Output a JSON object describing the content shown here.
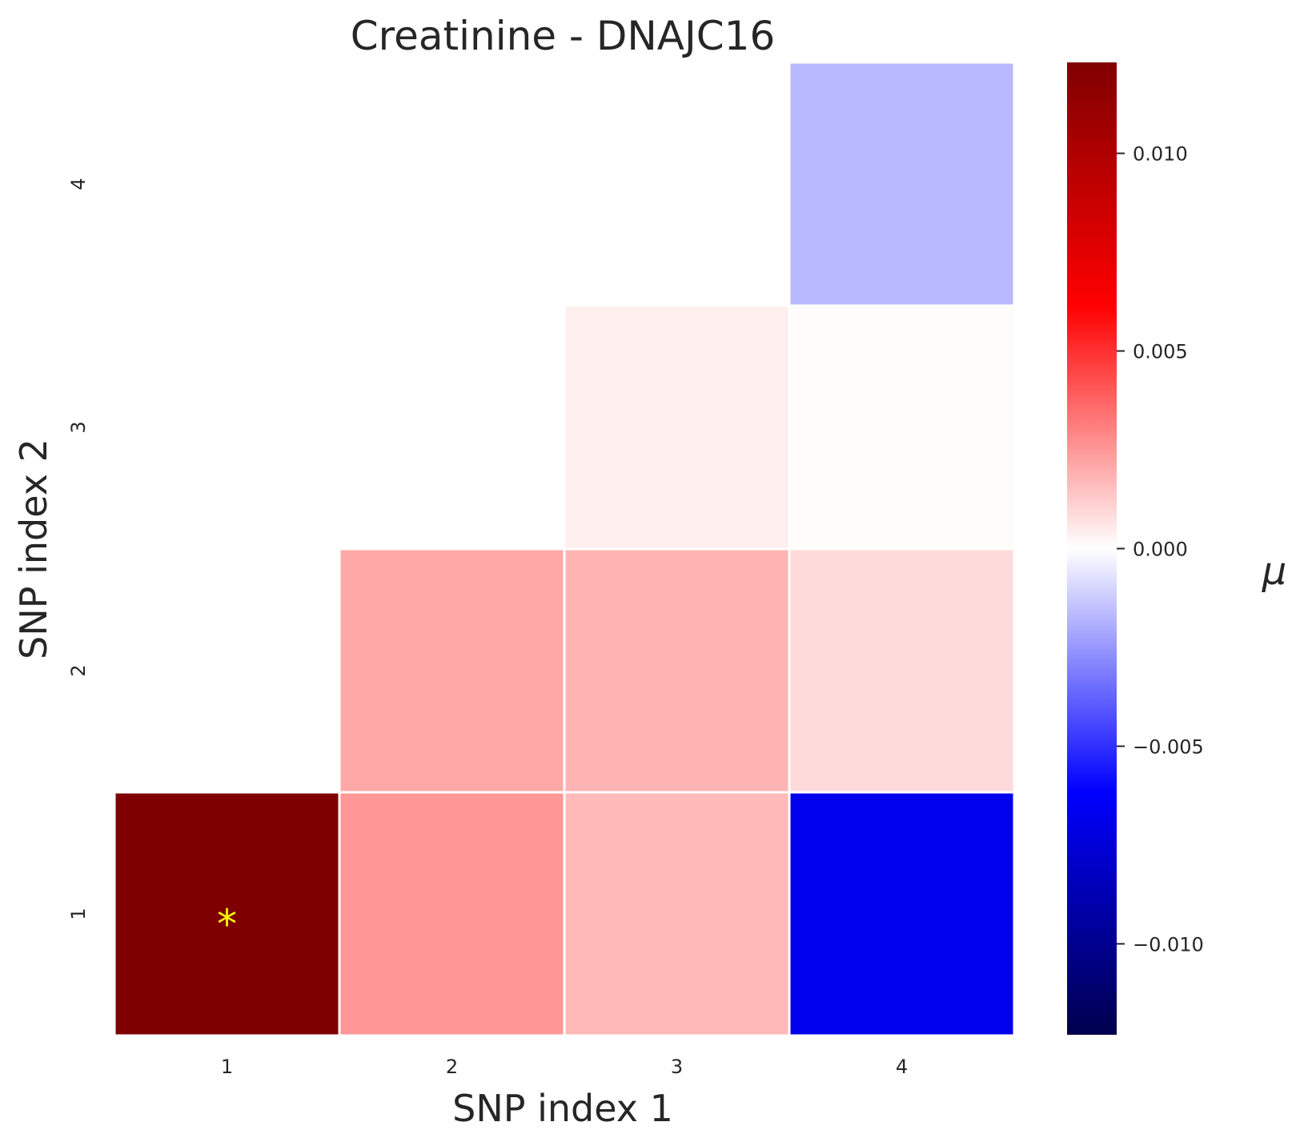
{
  "chart_data": {
    "type": "heatmap",
    "title": "Creatinine - DNAJC16",
    "xlabel": "SNP index 1",
    "ylabel": "SNP index 2",
    "x_categories": [
      "1",
      "2",
      "3",
      "4"
    ],
    "y_categories": [
      "1",
      "2",
      "3",
      "4"
    ],
    "cells": [
      {
        "x": "1",
        "y": "1",
        "value": 0.0123,
        "marker": "*"
      },
      {
        "x": "2",
        "y": "1",
        "value": 0.0025
      },
      {
        "x": "3",
        "y": "1",
        "value": 0.0017
      },
      {
        "x": "4",
        "y": "1",
        "value": -0.0068
      },
      {
        "x": "2",
        "y": "2",
        "value": 0.0021
      },
      {
        "x": "3",
        "y": "2",
        "value": 0.0018
      },
      {
        "x": "4",
        "y": "2",
        "value": 0.0009
      },
      {
        "x": "3",
        "y": "3",
        "value": 0.0004
      },
      {
        "x": "4",
        "y": "3",
        "value": 0.0001
      },
      {
        "x": "4",
        "y": "4",
        "value": -0.0017
      }
    ],
    "marker_color": "#ffff00",
    "colorbar": {
      "label": "μ",
      "colormap": "seismic",
      "range": [
        -0.0123,
        0.0123
      ],
      "ticks": [
        0.01,
        0.005,
        0.0,
        -0.005,
        -0.01
      ],
      "tick_labels": [
        "0.010",
        "0.005",
        "0.000",
        "−0.005",
        "−0.010"
      ]
    },
    "grid": false
  }
}
